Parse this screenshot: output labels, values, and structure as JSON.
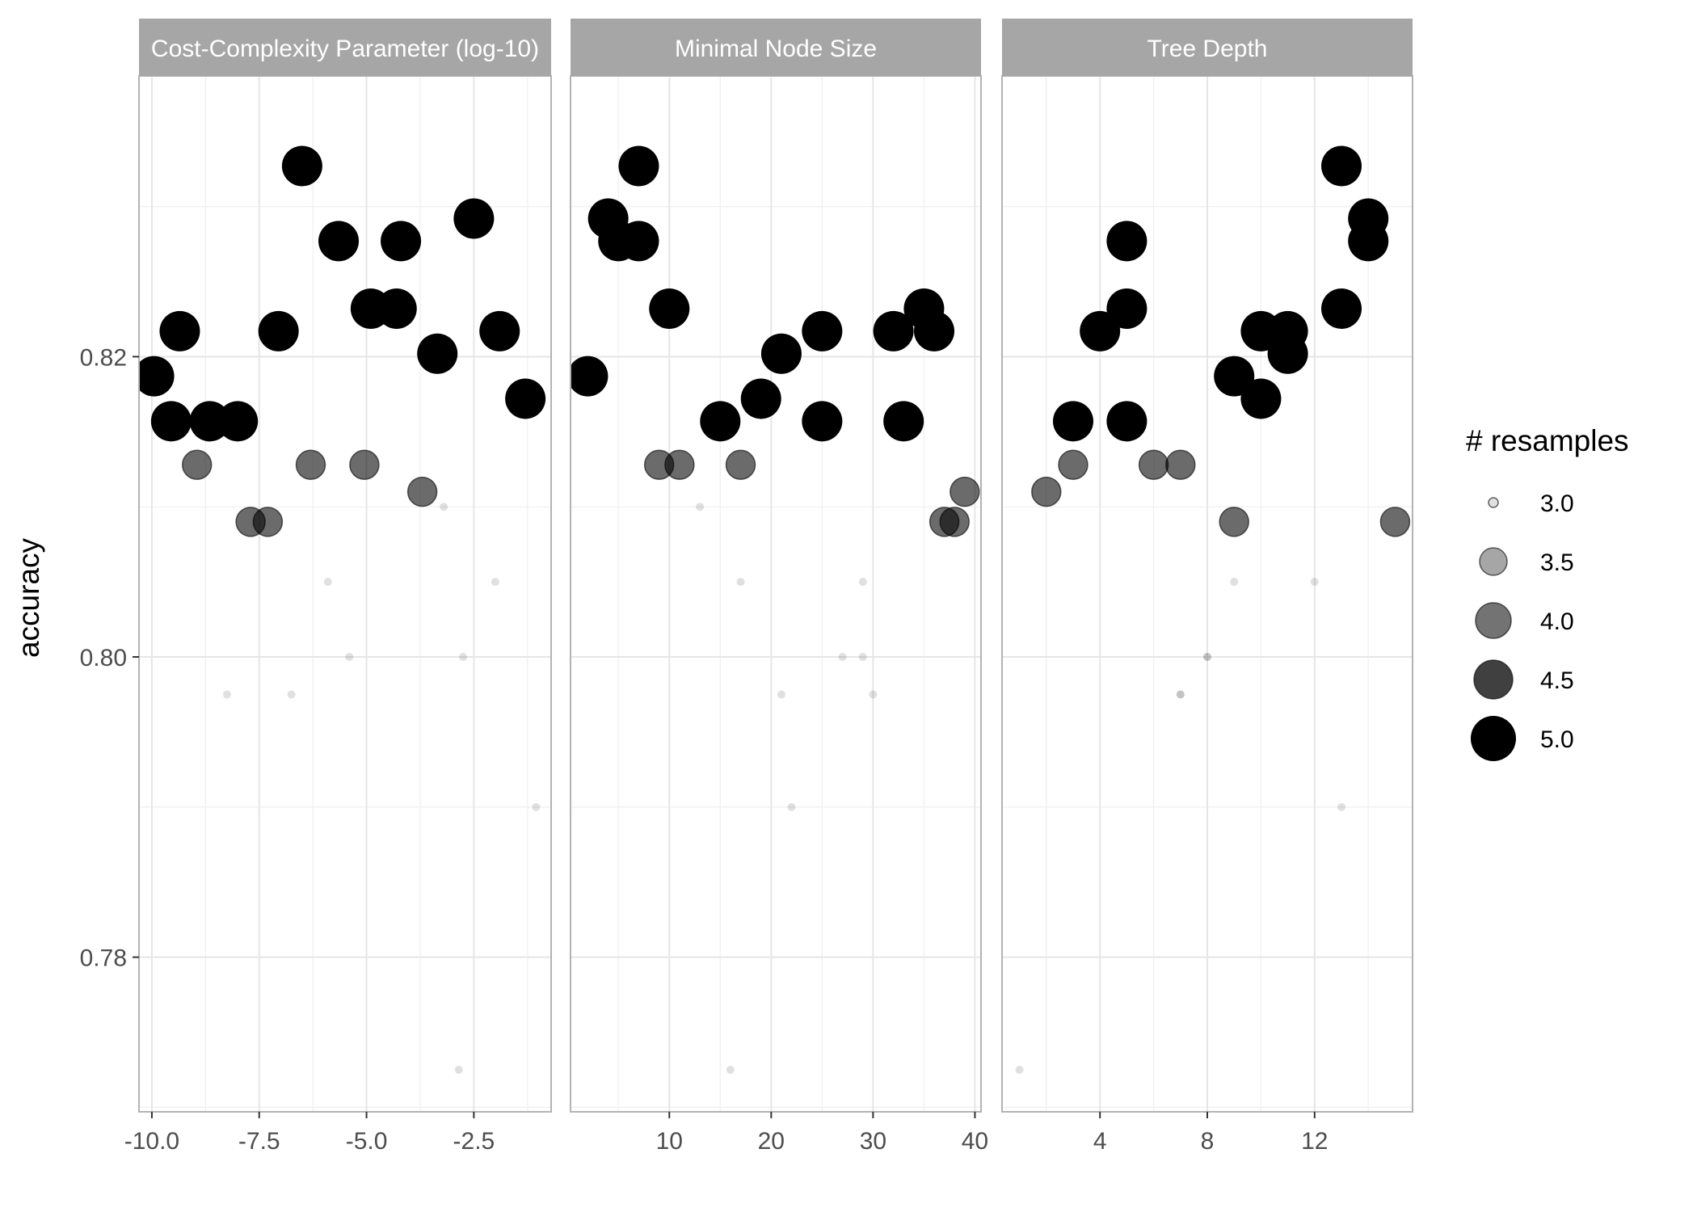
{
  "chart_data": {
    "type": "scatter",
    "ylabel": "accuracy",
    "y_ticks": [
      {
        "value": 0.78,
        "label": "0.78"
      },
      {
        "value": 0.8,
        "label": "0.80"
      },
      {
        "value": 0.82,
        "label": "0.82"
      }
    ],
    "ylim": [
      0.7697,
      0.8387
    ],
    "point_color": "#000000",
    "panel_border_color": "#b3b3b3",
    "grid_color": "#e6e6e6",
    "strip_fill": "#a6a6a6",
    "legend": {
      "title": "# resamples",
      "placement": "right",
      "entries": [
        {
          "value": 3.0,
          "label": "3.0"
        },
        {
          "value": 3.5,
          "label": "3.5"
        },
        {
          "value": 4.0,
          "label": "4.0"
        },
        {
          "value": 4.5,
          "label": "4.5"
        },
        {
          "value": 5.0,
          "label": "5.0"
        }
      ]
    },
    "panels": [
      {
        "title": "Cost-Complexity Parameter (log-10)",
        "xlim": [
          -10.3,
          -0.7
        ],
        "x_ticks": [
          {
            "value": -10,
            "label": "-10.0"
          },
          {
            "value": -7.5,
            "label": "-7.5"
          },
          {
            "value": -5,
            "label": "-5.0"
          },
          {
            "value": -2.5,
            "label": "-2.5"
          }
        ],
        "points": [
          {
            "x": -9.95,
            "y": 0.8187,
            "n": 5
          },
          {
            "x": -9.55,
            "y": 0.8157,
            "n": 5
          },
          {
            "x": -9.35,
            "y": 0.8217,
            "n": 5
          },
          {
            "x": -8.65,
            "y": 0.8157,
            "n": 5
          },
          {
            "x": -8.0,
            "y": 0.8157,
            "n": 5
          },
          {
            "x": -7.05,
            "y": 0.8217,
            "n": 5
          },
          {
            "x": -6.5,
            "y": 0.8327,
            "n": 5
          },
          {
            "x": -5.65,
            "y": 0.8277,
            "n": 5
          },
          {
            "x": -4.9,
            "y": 0.8232,
            "n": 5
          },
          {
            "x": -4.3,
            "y": 0.8232,
            "n": 5
          },
          {
            "x": -4.2,
            "y": 0.8277,
            "n": 5
          },
          {
            "x": -3.35,
            "y": 0.8202,
            "n": 5
          },
          {
            "x": -2.5,
            "y": 0.8292,
            "n": 5
          },
          {
            "x": -1.9,
            "y": 0.8217,
            "n": 5
          },
          {
            "x": -1.3,
            "y": 0.8172,
            "n": 5
          },
          {
            "x": -8.95,
            "y": 0.8128,
            "n": 4
          },
          {
            "x": -7.7,
            "y": 0.809,
            "n": 4
          },
          {
            "x": -7.3,
            "y": 0.809,
            "n": 4
          },
          {
            "x": -6.3,
            "y": 0.8128,
            "n": 4
          },
          {
            "x": -5.05,
            "y": 0.8128,
            "n": 4
          },
          {
            "x": -3.7,
            "y": 0.811,
            "n": 4
          },
          {
            "x": -8.25,
            "y": 0.7975,
            "n": 3
          },
          {
            "x": -6.75,
            "y": 0.7975,
            "n": 3
          },
          {
            "x": -5.9,
            "y": 0.805,
            "n": 3
          },
          {
            "x": -5.4,
            "y": 0.8,
            "n": 3
          },
          {
            "x": -3.2,
            "y": 0.81,
            "n": 3
          },
          {
            "x": -2.75,
            "y": 0.8,
            "n": 3
          },
          {
            "x": -2.85,
            "y": 0.7725,
            "n": 3
          },
          {
            "x": -2.0,
            "y": 0.805,
            "n": 3
          },
          {
            "x": -1.05,
            "y": 0.79,
            "n": 3
          }
        ]
      },
      {
        "title": "Minimal Node Size",
        "xlim": [
          0.3,
          40.6
        ],
        "x_ticks": [
          {
            "value": 10,
            "label": "10"
          },
          {
            "value": 20,
            "label": "20"
          },
          {
            "value": 30,
            "label": "30"
          },
          {
            "value": 40,
            "label": "40"
          }
        ],
        "points": [
          {
            "x": 2,
            "y": 0.8187,
            "n": 5
          },
          {
            "x": 4,
            "y": 0.8292,
            "n": 5
          },
          {
            "x": 5,
            "y": 0.8277,
            "n": 5
          },
          {
            "x": 7,
            "y": 0.8327,
            "n": 5
          },
          {
            "x": 7,
            "y": 0.8277,
            "n": 5
          },
          {
            "x": 10,
            "y": 0.8232,
            "n": 5
          },
          {
            "x": 15,
            "y": 0.8157,
            "n": 5
          },
          {
            "x": 19,
            "y": 0.8172,
            "n": 5
          },
          {
            "x": 21,
            "y": 0.8202,
            "n": 5
          },
          {
            "x": 25,
            "y": 0.8217,
            "n": 5
          },
          {
            "x": 25,
            "y": 0.8157,
            "n": 5
          },
          {
            "x": 32,
            "y": 0.8217,
            "n": 5
          },
          {
            "x": 33,
            "y": 0.8157,
            "n": 5
          },
          {
            "x": 35,
            "y": 0.8232,
            "n": 5
          },
          {
            "x": 36,
            "y": 0.8217,
            "n": 5
          },
          {
            "x": 9,
            "y": 0.8128,
            "n": 4
          },
          {
            "x": 11,
            "y": 0.8128,
            "n": 4
          },
          {
            "x": 17,
            "y": 0.8128,
            "n": 4
          },
          {
            "x": 37,
            "y": 0.809,
            "n": 4
          },
          {
            "x": 38,
            "y": 0.809,
            "n": 4
          },
          {
            "x": 39,
            "y": 0.811,
            "n": 4
          },
          {
            "x": 13,
            "y": 0.81,
            "n": 3
          },
          {
            "x": 16,
            "y": 0.7725,
            "n": 3
          },
          {
            "x": 17,
            "y": 0.805,
            "n": 3
          },
          {
            "x": 21,
            "y": 0.7975,
            "n": 3
          },
          {
            "x": 22,
            "y": 0.79,
            "n": 3
          },
          {
            "x": 27,
            "y": 0.8,
            "n": 3
          },
          {
            "x": 29,
            "y": 0.8,
            "n": 3
          },
          {
            "x": 29,
            "y": 0.805,
            "n": 3
          },
          {
            "x": 30,
            "y": 0.7975,
            "n": 3
          }
        ]
      },
      {
        "title": "Tree Depth",
        "xlim": [
          0.35,
          15.65
        ],
        "x_ticks": [
          {
            "value": 4,
            "label": "4"
          },
          {
            "value": 8,
            "label": "8"
          },
          {
            "value": 12,
            "label": "12"
          }
        ],
        "points": [
          {
            "x": 3,
            "y": 0.8157,
            "n": 5
          },
          {
            "x": 4,
            "y": 0.8217,
            "n": 5
          },
          {
            "x": 5,
            "y": 0.8277,
            "n": 5
          },
          {
            "x": 5,
            "y": 0.8232,
            "n": 5
          },
          {
            "x": 5,
            "y": 0.8157,
            "n": 5
          },
          {
            "x": 9,
            "y": 0.8187,
            "n": 5
          },
          {
            "x": 10,
            "y": 0.8217,
            "n": 5
          },
          {
            "x": 10,
            "y": 0.8172,
            "n": 5
          },
          {
            "x": 11,
            "y": 0.8217,
            "n": 5
          },
          {
            "x": 11,
            "y": 0.8202,
            "n": 5
          },
          {
            "x": 13,
            "y": 0.8327,
            "n": 5
          },
          {
            "x": 13,
            "y": 0.8232,
            "n": 5
          },
          {
            "x": 14,
            "y": 0.8292,
            "n": 5
          },
          {
            "x": 14,
            "y": 0.8277,
            "n": 5
          },
          {
            "x": 2,
            "y": 0.811,
            "n": 4
          },
          {
            "x": 3,
            "y": 0.8128,
            "n": 4
          },
          {
            "x": 6,
            "y": 0.8128,
            "n": 4
          },
          {
            "x": 7,
            "y": 0.8128,
            "n": 4
          },
          {
            "x": 9,
            "y": 0.809,
            "n": 4
          },
          {
            "x": 15,
            "y": 0.809,
            "n": 4
          },
          {
            "x": 1,
            "y": 0.7725,
            "n": 3
          },
          {
            "x": 7,
            "y": 0.7975,
            "n": 3
          },
          {
            "x": 7,
            "y": 0.7975,
            "n": 3
          },
          {
            "x": 8,
            "y": 0.8,
            "n": 3
          },
          {
            "x": 8,
            "y": 0.8,
            "n": 3
          },
          {
            "x": 9,
            "y": 0.805,
            "n": 3
          },
          {
            "x": 12,
            "y": 0.805,
            "n": 3
          },
          {
            "x": 13,
            "y": 0.79,
            "n": 3
          }
        ]
      }
    ]
  }
}
